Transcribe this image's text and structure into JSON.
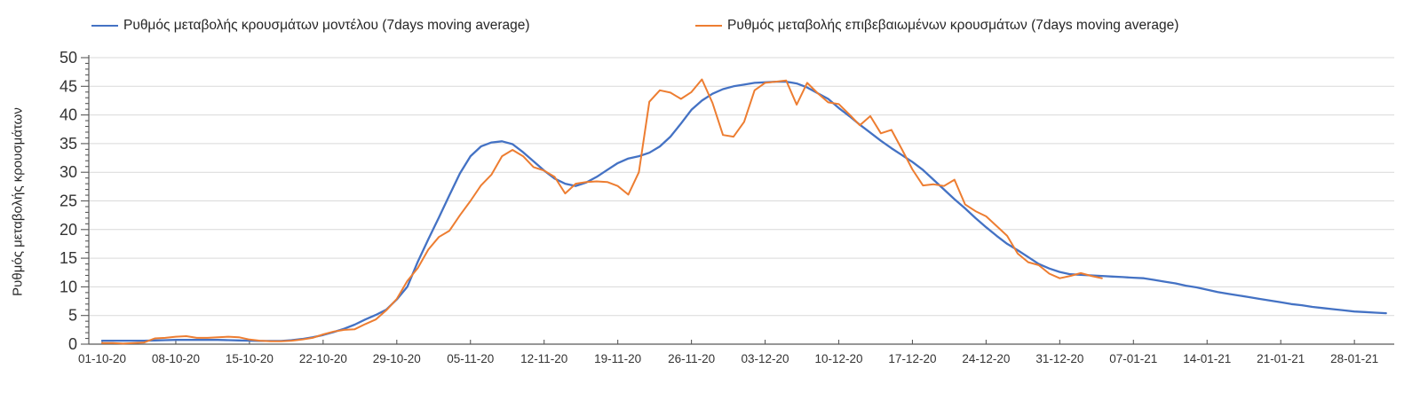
{
  "chart_data": {
    "type": "line",
    "title": "",
    "xlabel": "",
    "ylabel": "Ρυθμός μεταβολής κρουσμάτων",
    "ylim": [
      0,
      50
    ],
    "y_ticks": [
      0,
      5,
      10,
      15,
      20,
      25,
      30,
      35,
      40,
      45,
      50
    ],
    "y_minor_tick_step": 1,
    "grid": "horizontal",
    "legend_position": "top",
    "x_start_date": "01-10-20",
    "x_tick_interval_days": 7,
    "x_tick_labels": [
      "01-10-20",
      "08-10-20",
      "15-10-20",
      "22-10-20",
      "29-10-20",
      "05-11-20",
      "12-11-20",
      "19-11-20",
      "26-11-20",
      "03-12-20",
      "10-12-20",
      "17-12-20",
      "24-12-20",
      "31-12-20",
      "07-01-21",
      "14-01-21",
      "21-01-21",
      "28-01-21"
    ],
    "point_interval_days": 1,
    "series": [
      {
        "name": "Ρυθμός μεταβολής κρουσμάτων μοντέλου (7days moving average)",
        "color": "#4472C4",
        "start_day": 0,
        "values": [
          0.6,
          0.6,
          0.6,
          0.6,
          0.6,
          0.65,
          0.7,
          0.75,
          0.75,
          0.75,
          0.75,
          0.75,
          0.7,
          0.65,
          0.6,
          0.55,
          0.55,
          0.55,
          0.7,
          0.9,
          1.2,
          1.6,
          2.1,
          2.7,
          3.4,
          4.3,
          5.1,
          6.0,
          7.8,
          10.0,
          14.4,
          18.3,
          22.1,
          26.0,
          29.8,
          32.8,
          34.5,
          35.2,
          35.4,
          34.9,
          33.5,
          31.9,
          30.3,
          28.9,
          28.0,
          27.6,
          28.2,
          29.2,
          30.4,
          31.6,
          32.4,
          32.8,
          33.4,
          34.5,
          36.2,
          38.5,
          40.9,
          42.5,
          43.7,
          44.5,
          45.0,
          45.3,
          45.6,
          45.7,
          45.8,
          45.8,
          45.5,
          44.8,
          43.8,
          42.8,
          41.2,
          39.8,
          38.3,
          36.9,
          35.5,
          34.2,
          33.0,
          31.8,
          30.4,
          28.7,
          27.0,
          25.3,
          23.7,
          22.0,
          20.4,
          18.9,
          17.5,
          16.4,
          15.2,
          14.0,
          13.2,
          12.6,
          12.2,
          12.1,
          12.0,
          11.9,
          11.8,
          11.7,
          11.6,
          11.5,
          11.2,
          10.9,
          10.6,
          10.2,
          9.9,
          9.5,
          9.1,
          8.8,
          8.5,
          8.2,
          7.9,
          7.6,
          7.3,
          7.0,
          6.8,
          6.5,
          6.3,
          6.1,
          5.9,
          5.7,
          5.6,
          5.5,
          5.4
        ]
      },
      {
        "name": "Ρυθμός μεταβολής επιβεβαιωμένων κρουσμάτων (7days moving average)",
        "color": "#ED7D31",
        "start_day": 0,
        "values": [
          0.2,
          0.2,
          0.1,
          0.2,
          0.3,
          1.0,
          1.1,
          1.3,
          1.4,
          1.1,
          1.1,
          1.2,
          1.3,
          1.2,
          0.8,
          0.6,
          0.5,
          0.5,
          0.6,
          0.8,
          1.1,
          1.7,
          2.2,
          2.5,
          2.6,
          3.5,
          4.3,
          5.9,
          7.9,
          11.0,
          13.3,
          16.5,
          18.7,
          19.8,
          22.5,
          25.0,
          27.7,
          29.6,
          32.8,
          33.9,
          32.8,
          30.9,
          30.3,
          29.2,
          26.3,
          28.0,
          28.3,
          28.4,
          28.3,
          27.6,
          26.1,
          30.0,
          42.3,
          44.3,
          43.9,
          42.8,
          44.0,
          46.2,
          42.1,
          36.5,
          36.2,
          38.8,
          44.3,
          45.6,
          45.8,
          46.0,
          41.8,
          45.6,
          43.8,
          42.2,
          41.9,
          40.1,
          38.2,
          39.8,
          36.8,
          37.4,
          34.0,
          30.5,
          27.7,
          27.9,
          27.6,
          28.7,
          24.4,
          23.2,
          22.3,
          20.6,
          18.9,
          15.8,
          14.3,
          13.8,
          12.3,
          11.5,
          11.9,
          12.4,
          11.9,
          11.5
        ]
      }
    ],
    "colors": {
      "gridline": "#D9D9D9",
      "axis": "#595959",
      "tick_text": "#333333",
      "legend_text": "#262626"
    }
  }
}
